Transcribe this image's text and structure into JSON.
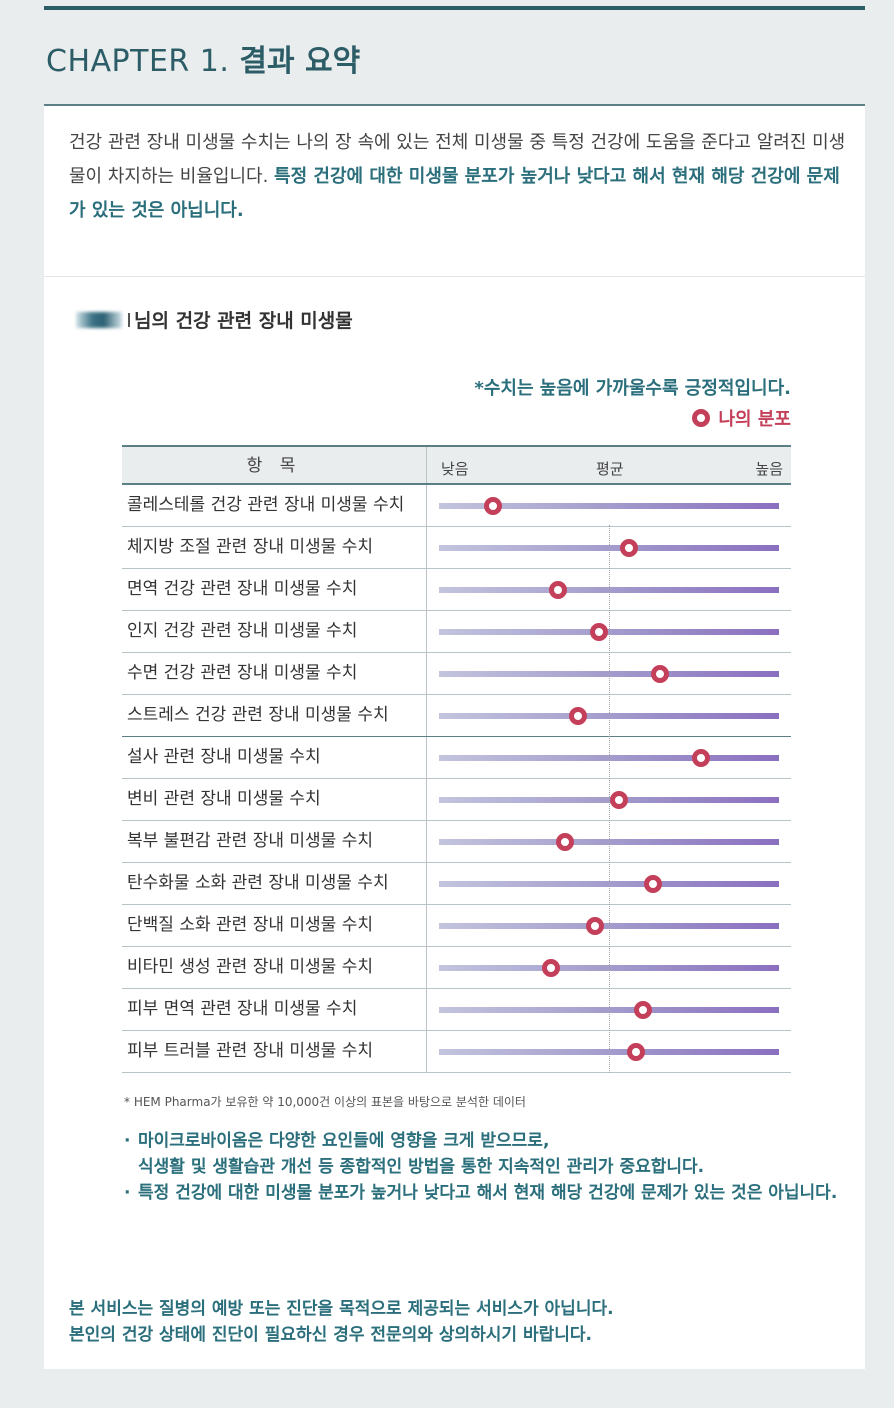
{
  "header": {
    "chapter_en": "CHAPTER 1.",
    "chapter_ko": "결과 요약"
  },
  "intro": {
    "normal": "건강 관련 장내 미생물 수치는 나의 장 속에 있는 전체 미생물 중 특정 건강에 도움을 준다고 알려진 미생물이 차지하는 비율입니다. ",
    "highlight": "특정 건강에 대한 미생물 분포가 높거나 낮다고 해서 현재 해당 건강에 문제가 있는 것은 아닙니다."
  },
  "user": {
    "title_suffix": "님의 건강 관련 장내 미생물"
  },
  "notes": {
    "positive": "*수치는 높음에 가까울수록 긍정적입니다.",
    "legend": "나의 분포"
  },
  "table": {
    "header_item": "항 목",
    "scale_low": "낮음",
    "scale_avg": "평균",
    "scale_high": "높음",
    "rows": [
      {
        "label": "콜레스테롤 건강 관련 장내 미생물 수치",
        "value": 0.16
      },
      {
        "label": "체지방 조절 관련 장내 미생물 수치",
        "value": 0.56
      },
      {
        "label": "면역 건강 관련 장내 미생물 수치",
        "value": 0.35
      },
      {
        "label": "인지 건강 관련 장내 미생물 수치",
        "value": 0.47
      },
      {
        "label": "수면 건강 관련 장내 미생물 수치",
        "value": 0.65
      },
      {
        "label": "스트레스 건강 관련 장내 미생물 수치",
        "value": 0.41
      },
      {
        "label": "설사 관련 장내 미생물 수치",
        "value": 0.77
      },
      {
        "label": "변비 관련 장내 미생물 수치",
        "value": 0.53
      },
      {
        "label": "복부 불편감 관련 장내 미생물 수치",
        "value": 0.37
      },
      {
        "label": "탄수화물 소화 관련 장내 미생물 수치",
        "value": 0.63
      },
      {
        "label": "단백질 소화 관련 장내 미생물 수치",
        "value": 0.46
      },
      {
        "label": "비타민 생성 관련 장내 미생물 수치",
        "value": 0.33
      },
      {
        "label": "피부 면역 관련 장내 미생물 수치",
        "value": 0.6
      },
      {
        "label": "피부 트러블 관련 장내 미생물 수치",
        "value": 0.58
      }
    ]
  },
  "source": "* HEM Pharma가 보유한 약 10,000건 이상의 표본을 바탕으로 분석한 데이터",
  "bullets": {
    "b1_line1": "마이크로바이옴은 다양한 요인들에 영향을 크게 받으므로,",
    "b1_line2": "식생활 및 생활습관 개선 등 종합적인 방법을 통한 지속적인 관리가 중요합니다.",
    "b2": "특정 건강에 대한 미생물 분포가 높거나 낮다고 해서 현재 해당 건강에 문제가 있는 것은 아닙니다."
  },
  "disclaimer": {
    "line1": "본 서비스는 질병의 예방 또는 진단을 목적으로 제공되는 서비스가 아닙니다.",
    "line2": "본인의 건강 상태에 진단이 필요하신 경우 전문의와 상의하시기 바랍니다."
  },
  "colors": {
    "accent": "#2c5d67",
    "highlight": "#2b6f7c",
    "marker": "#c4405a"
  }
}
